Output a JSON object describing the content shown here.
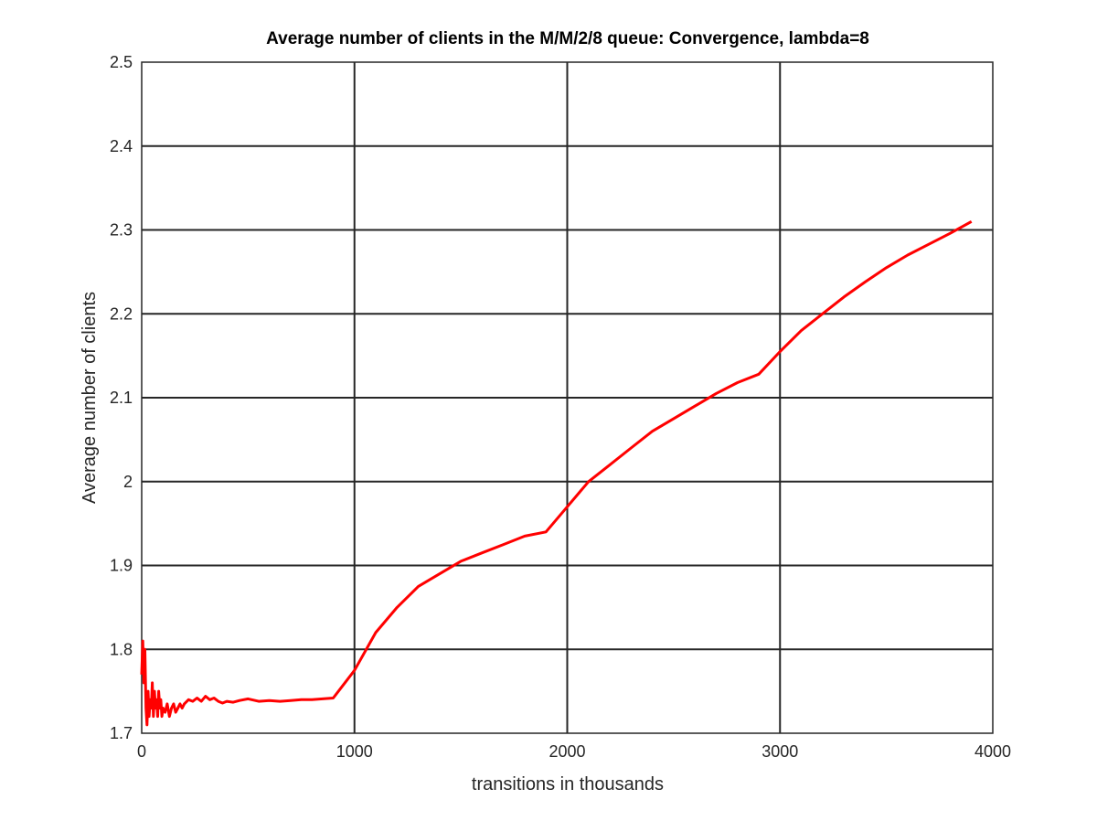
{
  "chart_data": {
    "type": "line",
    "title": "Average number of clients in the M/M/2/8 queue: Convergence, lambda=8",
    "xlabel": "transitions in thousands",
    "ylabel": "Average number of clients",
    "xlim": [
      0,
      4000
    ],
    "ylim": [
      1.7,
      2.5
    ],
    "xticks": [
      0,
      1000,
      2000,
      3000,
      4000
    ],
    "xtick_labels": [
      "0",
      "1000",
      "2000",
      "3000",
      "4000"
    ],
    "yticks": [
      1.7,
      1.8,
      1.9,
      2.0,
      2.1,
      2.2,
      2.3,
      2.4,
      2.5
    ],
    "ytick_labels": [
      "1.7",
      "1.8",
      "1.9",
      "2",
      "2.1",
      "2.2",
      "2.3",
      "2.4",
      "2.5"
    ],
    "grid": true,
    "legend": "none",
    "line_color": "#ff0000",
    "series": [
      {
        "x": [
          0,
          5,
          10,
          15,
          20,
          25,
          30,
          35,
          40,
          45,
          50,
          55,
          60,
          65,
          70,
          75,
          80,
          85,
          90,
          95,
          100,
          110,
          120,
          130,
          140,
          150,
          160,
          170,
          180,
          190,
          200,
          220,
          240,
          260,
          280,
          300,
          320,
          340,
          360,
          380,
          400,
          430,
          460,
          500,
          550,
          600,
          650,
          700,
          750,
          800,
          850,
          900,
          1000,
          1100,
          1200,
          1300,
          1400,
          1500,
          1600,
          1700,
          1800,
          1900,
          2000,
          2100,
          2200,
          2300,
          2400,
          2500,
          2600,
          2700,
          2800,
          2900,
          3000,
          3100,
          3200,
          3300,
          3400,
          3500,
          3600,
          3700,
          3800,
          3900
        ],
        "y": [
          1.77,
          1.81,
          1.76,
          1.8,
          1.73,
          1.71,
          1.75,
          1.72,
          1.74,
          1.73,
          1.76,
          1.72,
          1.75,
          1.73,
          1.74,
          1.72,
          1.75,
          1.73,
          1.74,
          1.72,
          1.73,
          1.725,
          1.735,
          1.72,
          1.73,
          1.735,
          1.725,
          1.73,
          1.735,
          1.73,
          1.735,
          1.74,
          1.738,
          1.742,
          1.738,
          1.744,
          1.74,
          1.742,
          1.738,
          1.736,
          1.738,
          1.737,
          1.739,
          1.741,
          1.738,
          1.739,
          1.738,
          1.739,
          1.74,
          1.74,
          1.741,
          1.742,
          1.775,
          1.82,
          1.85,
          1.875,
          1.89,
          1.905,
          1.915,
          1.925,
          1.935,
          1.94,
          1.97,
          2.0,
          2.02,
          2.04,
          2.06,
          2.075,
          2.09,
          2.105,
          2.118,
          2.128,
          2.155,
          2.18,
          2.2,
          2.22,
          2.238,
          2.255,
          2.27,
          2.283,
          2.296,
          2.31
        ]
      }
    ]
  }
}
